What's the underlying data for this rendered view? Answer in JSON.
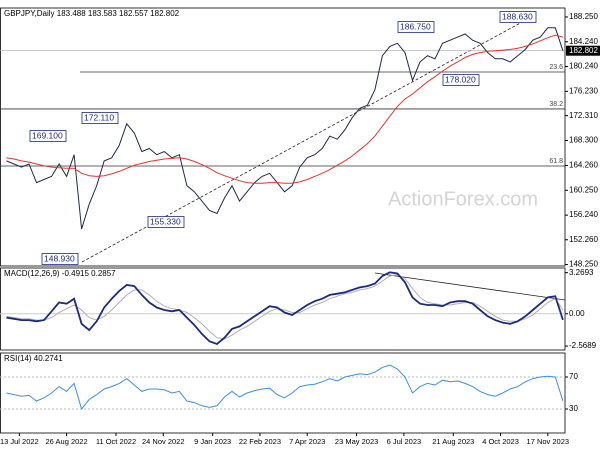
{
  "chart_data": [
    {
      "type": "line",
      "title": "GBPJPY,Daily  183.488 183.583 182.557 182.802",
      "watermark": "ActionForex.com",
      "last_price": 182.802,
      "x": [
        "2022-07-01",
        "2022-07-08",
        "2022-07-15",
        "2022-07-22",
        "2022-07-29",
        "2022-08-05",
        "2022-08-12",
        "2022-08-19",
        "2022-08-26",
        "2022-09-02",
        "2022-09-09",
        "2022-09-16",
        "2022-09-23",
        "2022-09-30",
        "2022-10-07",
        "2022-10-14",
        "2022-10-21",
        "2022-10-28",
        "2022-11-04",
        "2022-11-11",
        "2022-11-18",
        "2022-11-25",
        "2022-12-02",
        "2022-12-09",
        "2022-12-16",
        "2022-12-23",
        "2022-12-30",
        "2023-01-06",
        "2023-01-13",
        "2023-01-20",
        "2023-01-27",
        "2023-02-03",
        "2023-02-10",
        "2023-02-17",
        "2023-02-24",
        "2023-03-03",
        "2023-03-10",
        "2023-03-17",
        "2023-03-24",
        "2023-03-31",
        "2023-04-07",
        "2023-04-14",
        "2023-04-21",
        "2023-04-28",
        "2023-05-05",
        "2023-05-12",
        "2023-05-19",
        "2023-05-26",
        "2023-06-02",
        "2023-06-09",
        "2023-06-16",
        "2023-06-23",
        "2023-06-30",
        "2023-07-07",
        "2023-07-14",
        "2023-07-21",
        "2023-07-28",
        "2023-08-04",
        "2023-08-11",
        "2023-08-18",
        "2023-08-25",
        "2023-09-01",
        "2023-09-08",
        "2023-09-15",
        "2023-09-22",
        "2023-09-29",
        "2023-10-06",
        "2023-10-13",
        "2023-10-20",
        "2023-10-27",
        "2023-11-03",
        "2023-11-10",
        "2023-11-17",
        "2023-11-24",
        "2023-12-01"
      ],
      "series": [
        {
          "color": "#1f2a44",
          "values": [
            165.0,
            164.5,
            164.0,
            164.5,
            161.5,
            162.0,
            162.5,
            164.5,
            162.5,
            166.0,
            154.0,
            158.0,
            161.0,
            165.0,
            165.5,
            167.5,
            171.0,
            169.5,
            166.5,
            167.0,
            166.0,
            166.5,
            165.5,
            166.0,
            161.0,
            160.0,
            158.5,
            157.0,
            156.5,
            159.0,
            161.0,
            158.5,
            160.0,
            161.5,
            162.5,
            163.0,
            161.5,
            160.0,
            161.0,
            164.0,
            165.5,
            166.0,
            167.0,
            169.0,
            168.5,
            170.0,
            172.0,
            173.5,
            174.0,
            176.5,
            182.0,
            183.5,
            184.0,
            182.5,
            178.0,
            181.0,
            182.0,
            181.5,
            184.0,
            184.5,
            185.0,
            185.5,
            184.5,
            184.0,
            182.5,
            181.5,
            181.5,
            181.0,
            182.0,
            183.0,
            184.5,
            185.0,
            186.5,
            186.5,
            182.8
          ]
        },
        {
          "color": "#e8322e",
          "values": [
            165.5,
            165.3,
            165.0,
            164.8,
            164.5,
            164.2,
            164.0,
            163.9,
            163.8,
            163.8,
            163.0,
            162.6,
            162.5,
            162.6,
            162.9,
            163.3,
            163.8,
            164.3,
            164.6,
            164.9,
            165.1,
            165.3,
            165.4,
            165.5,
            165.3,
            164.9,
            164.4,
            163.8,
            163.1,
            162.6,
            162.2,
            161.8,
            161.5,
            161.4,
            161.4,
            161.5,
            161.5,
            161.4,
            161.4,
            161.6,
            162.0,
            162.5,
            163.0,
            163.6,
            164.3,
            165.0,
            165.8,
            166.8,
            167.8,
            169.0,
            170.6,
            172.2,
            173.8,
            175.0,
            175.8,
            176.8,
            177.8,
            178.6,
            179.5,
            180.3,
            181.0,
            181.7,
            182.2,
            182.5,
            182.7,
            182.8,
            182.9,
            183.0,
            183.2,
            183.5,
            183.9,
            184.4,
            184.9,
            185.3,
            185.0
          ]
        }
      ],
      "annotations": [
        "188.630",
        "186.750",
        "178.020",
        "172.110",
        "169.100",
        "155.330",
        "148.930"
      ],
      "fib_levels": [
        {
          "ratio": 23.6,
          "value": 179.36
        },
        {
          "ratio": 38.2,
          "value": 173.39
        },
        {
          "ratio": 61.8,
          "value": 164.18
        }
      ],
      "xlim": [
        "2022-06-25",
        "2023-12-03"
      ],
      "ylim": [
        148.02,
        189.7
      ],
      "yticks": [
        {
          "value": 188.25,
          "label": "188.250"
        },
        {
          "value": 184.24,
          "label": "184.240"
        },
        {
          "value": 180.24,
          "label": "180.240"
        },
        {
          "value": 176.23,
          "label": "176.230"
        },
        {
          "value": 172.31,
          "label": "172.310"
        },
        {
          "value": 168.3,
          "label": "168.300"
        },
        {
          "value": 164.26,
          "label": "164.260"
        },
        {
          "value": 160.25,
          "label": "160.250"
        },
        {
          "value": 156.24,
          "label": "156.240"
        },
        {
          "value": 152.26,
          "label": "152.260"
        },
        {
          "value": 148.25,
          "label": "148.250"
        }
      ]
    },
    {
      "type": "line",
      "title": "MACD(12,26,9) -0.4915 0.2857",
      "x": [
        "2022-07-01",
        "2022-07-08",
        "2022-07-15",
        "2022-07-22",
        "2022-07-29",
        "2022-08-05",
        "2022-08-12",
        "2022-08-19",
        "2022-08-26",
        "2022-09-02",
        "2022-09-09",
        "2022-09-16",
        "2022-09-23",
        "2022-09-30",
        "2022-10-07",
        "2022-10-14",
        "2022-10-21",
        "2022-10-28",
        "2022-11-04",
        "2022-11-11",
        "2022-11-18",
        "2022-11-25",
        "2022-12-02",
        "2022-12-09",
        "2022-12-16",
        "2022-12-23",
        "2022-12-30",
        "2023-01-06",
        "2023-01-13",
        "2023-01-20",
        "2023-01-27",
        "2023-02-03",
        "2023-02-10",
        "2023-02-17",
        "2023-02-24",
        "2023-03-03",
        "2023-03-10",
        "2023-03-17",
        "2023-03-24",
        "2023-03-31",
        "2023-04-07",
        "2023-04-14",
        "2023-04-21",
        "2023-04-28",
        "2023-05-05",
        "2023-05-12",
        "2023-05-19",
        "2023-05-26",
        "2023-06-02",
        "2023-06-09",
        "2023-06-16",
        "2023-06-23",
        "2023-06-30",
        "2023-07-07",
        "2023-07-14",
        "2023-07-21",
        "2023-07-28",
        "2023-08-04",
        "2023-08-11",
        "2023-08-18",
        "2023-08-25",
        "2023-09-01",
        "2023-09-08",
        "2023-09-15",
        "2023-09-22",
        "2023-09-29",
        "2023-10-06",
        "2023-10-13",
        "2023-10-20",
        "2023-10-27",
        "2023-11-03",
        "2023-11-10",
        "2023-11-17",
        "2023-11-24",
        "2023-12-01"
      ],
      "series": [
        {
          "color": "#b0b0b0",
          "values": [
            -0.2,
            -0.3,
            -0.4,
            -0.4,
            -0.5,
            -0.5,
            -0.3,
            0.1,
            0.4,
            0.7,
            0.3,
            -0.3,
            -0.5,
            -0.2,
            0.3,
            0.9,
            1.5,
            1.9,
            1.9,
            1.5,
            1.0,
            0.6,
            0.4,
            0.3,
            0.1,
            -0.3,
            -0.8,
            -1.4,
            -1.9,
            -2.0,
            -1.7,
            -1.3,
            -1.0,
            -0.6,
            -0.2,
            0.2,
            0.4,
            0.3,
            0.1,
            0.1,
            0.4,
            0.7,
            0.9,
            1.2,
            1.4,
            1.6,
            1.7,
            1.9,
            2.0,
            2.2,
            2.6,
            3.0,
            3.1,
            2.8,
            2.0,
            1.3,
            0.9,
            0.8,
            0.7,
            0.7,
            0.8,
            0.9,
            0.9,
            0.6,
            0.2,
            -0.2,
            -0.5,
            -0.6,
            -0.6,
            -0.4,
            -0.1,
            0.4,
            0.9,
            1.2,
            0.29
          ]
        },
        {
          "color": "#1c2a80",
          "values": [
            -0.3,
            -0.4,
            -0.5,
            -0.5,
            -0.6,
            -0.5,
            0.2,
            0.9,
            0.8,
            1.2,
            -0.8,
            -1.3,
            -0.6,
            0.5,
            1.2,
            1.8,
            2.3,
            2.2,
            1.5,
            0.9,
            0.5,
            0.3,
            0.2,
            0.3,
            -0.3,
            -0.9,
            -1.6,
            -2.2,
            -2.4,
            -1.9,
            -1.2,
            -1.0,
            -0.6,
            -0.2,
            0.2,
            0.6,
            0.5,
            0.1,
            -0.1,
            0.3,
            0.7,
            1.0,
            1.2,
            1.5,
            1.6,
            1.7,
            1.9,
            2.1,
            2.2,
            2.4,
            3.0,
            3.3,
            3.2,
            2.5,
            1.3,
            0.8,
            0.7,
            0.7,
            0.6,
            0.9,
            1.0,
            1.0,
            0.8,
            0.3,
            -0.2,
            -0.5,
            -0.7,
            -0.8,
            -0.6,
            -0.2,
            0.3,
            0.8,
            1.3,
            1.4,
            -0.49
          ]
        }
      ],
      "xlim": [
        "2022-06-25",
        "2023-12-03"
      ],
      "ylim": [
        -2.88,
        3.64
      ],
      "yticks": [
        3.2693,
        {
          "value": 0,
          "label": "0.00"
        },
        -2.5689
      ]
    },
    {
      "type": "line",
      "title": "RSI(14) 40.2741",
      "x": [
        "2022-07-01",
        "2022-07-08",
        "2022-07-15",
        "2022-07-22",
        "2022-07-29",
        "2022-08-05",
        "2022-08-12",
        "2022-08-19",
        "2022-08-26",
        "2022-09-02",
        "2022-09-09",
        "2022-09-16",
        "2022-09-23",
        "2022-09-30",
        "2022-10-07",
        "2022-10-14",
        "2022-10-21",
        "2022-10-28",
        "2022-11-04",
        "2022-11-11",
        "2022-11-18",
        "2022-11-25",
        "2022-12-02",
        "2022-12-09",
        "2022-12-16",
        "2022-12-23",
        "2022-12-30",
        "2023-01-06",
        "2023-01-13",
        "2023-01-20",
        "2023-01-27",
        "2023-02-03",
        "2023-02-10",
        "2023-02-17",
        "2023-02-24",
        "2023-03-03",
        "2023-03-10",
        "2023-03-17",
        "2023-03-24",
        "2023-03-31",
        "2023-04-07",
        "2023-04-14",
        "2023-04-21",
        "2023-04-28",
        "2023-05-05",
        "2023-05-12",
        "2023-05-19",
        "2023-05-26",
        "2023-06-02",
        "2023-06-09",
        "2023-06-16",
        "2023-06-23",
        "2023-06-30",
        "2023-07-07",
        "2023-07-14",
        "2023-07-21",
        "2023-07-28",
        "2023-08-04",
        "2023-08-11",
        "2023-08-18",
        "2023-08-25",
        "2023-09-01",
        "2023-09-08",
        "2023-09-15",
        "2023-09-22",
        "2023-09-29",
        "2023-10-06",
        "2023-10-13",
        "2023-10-20",
        "2023-10-27",
        "2023-11-03",
        "2023-11-10",
        "2023-11-17",
        "2023-11-24",
        "2023-12-01"
      ],
      "series": [
        {
          "color": "#3d8fe0",
          "values": [
            50,
            48,
            46,
            47,
            40,
            44,
            50,
            58,
            52,
            62,
            30,
            42,
            48,
            55,
            58,
            62,
            68,
            60,
            52,
            55,
            55,
            54,
            50,
            52,
            40,
            38,
            34,
            32,
            34,
            45,
            52,
            45,
            50,
            53,
            55,
            56,
            48,
            44,
            50,
            58,
            60,
            61,
            64,
            68,
            65,
            70,
            72,
            74,
            73,
            76,
            82,
            85,
            80,
            70,
            50,
            58,
            62,
            60,
            66,
            64,
            65,
            62,
            58,
            52,
            48,
            46,
            50,
            55,
            58,
            64,
            68,
            70,
            71,
            70,
            40.27
          ]
        }
      ],
      "xlim": [
        "2022-06-25",
        "2023-12-03"
      ],
      "ylim": [
        0,
        100
      ],
      "yticks": [
        30,
        70
      ],
      "xticks": [
        {
          "value": "2022-07-13",
          "label": "13 Jul 2022"
        },
        {
          "value": "2022-08-26",
          "label": "26 Aug 2022"
        },
        {
          "value": "2022-10-11",
          "label": "11 Oct 2022"
        },
        {
          "value": "2022-11-24",
          "label": "24 Nov 2022"
        },
        {
          "value": "2023-01-09",
          "label": "9 Jan 2023"
        },
        {
          "value": "2023-02-22",
          "label": "22 Feb 2023"
        },
        {
          "value": "2023-04-07",
          "label": "7 Apr 2023"
        },
        {
          "value": "2023-05-23",
          "label": "23 May 2023"
        },
        {
          "value": "2023-07-06",
          "label": "6 Jul 2023"
        },
        {
          "value": "2023-08-21",
          "label": "21 Aug 2023"
        },
        {
          "value": "2023-10-04",
          "label": "4 Oct 2023"
        },
        {
          "value": "2023-11-17",
          "label": "17 Nov 2023"
        }
      ]
    }
  ]
}
